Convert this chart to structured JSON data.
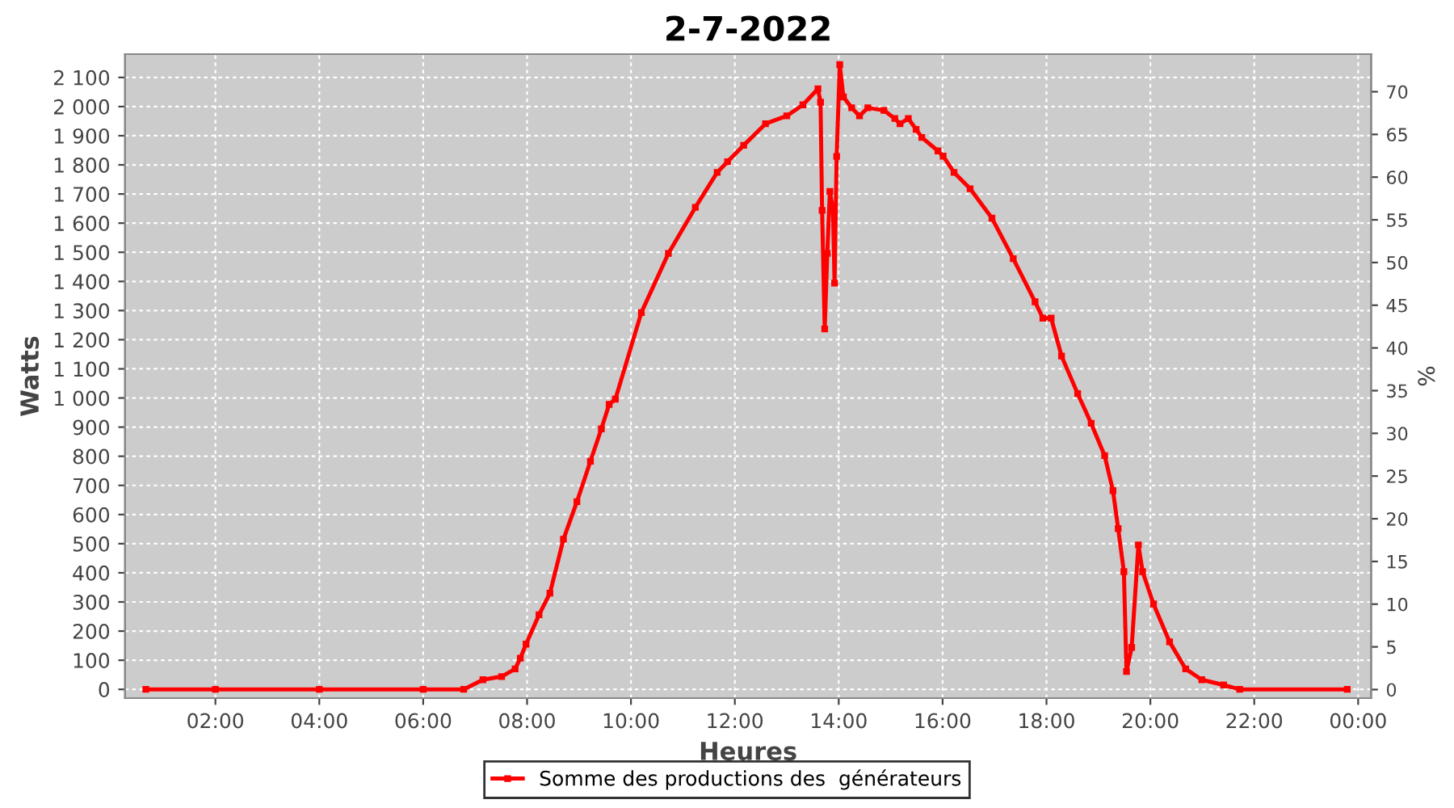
{
  "chart_data": {
    "type": "line",
    "title": "2-7-2022",
    "xlabel": "Heures",
    "ylabel": "Watts",
    "y2label": "%",
    "xlim": [
      0.26,
      24.25
    ],
    "xticks": [
      {
        "value": 2,
        "label": "02:00"
      },
      {
        "value": 4,
        "label": "04:00"
      },
      {
        "value": 6,
        "label": "06:00"
      },
      {
        "value": 8,
        "label": "08:00"
      },
      {
        "value": 10,
        "label": "10:00"
      },
      {
        "value": 12,
        "label": "12:00"
      },
      {
        "value": 14,
        "label": "14:00"
      },
      {
        "value": 16,
        "label": "16:00"
      },
      {
        "value": 18,
        "label": "18:00"
      },
      {
        "value": 20,
        "label": "20:00"
      },
      {
        "value": 22,
        "label": "22:00"
      },
      {
        "value": 24,
        "label": "00:00"
      }
    ],
    "ylim": [
      -30,
      2180
    ],
    "yticks": [
      0,
      100,
      200,
      300,
      400,
      500,
      600,
      700,
      800,
      900,
      {
        "value": 1000,
        "label": "1 000"
      },
      {
        "value": 1100,
        "label": "1 100"
      },
      {
        "value": 1200,
        "label": "1 200"
      },
      {
        "value": 1300,
        "label": "1 300"
      },
      {
        "value": 1400,
        "label": "1 400"
      },
      {
        "value": 1500,
        "label": "1 500"
      },
      {
        "value": 1600,
        "label": "1 600"
      },
      {
        "value": 1700,
        "label": "1 700"
      },
      {
        "value": 1800,
        "label": "1 800"
      },
      {
        "value": 1900,
        "label": "1 900"
      },
      {
        "value": 2000,
        "label": "2 000"
      },
      {
        "value": 2100,
        "label": "2 100"
      }
    ],
    "y2lim": [
      -1.0,
      74.4
    ],
    "y2ticks": [
      0,
      5,
      10,
      15,
      20,
      25,
      30,
      35,
      40,
      45,
      50,
      55,
      60,
      65,
      70
    ],
    "grid": true,
    "legend": "bottom",
    "marker": "square",
    "line_style": "solid",
    "series": [
      {
        "name": "Somme des productions des  générateurs",
        "color": "#ff0000",
        "x": [
          0.66,
          2.0,
          4.0,
          6.0,
          6.78,
          7.15,
          7.51,
          7.77,
          7.87,
          7.98,
          8.23,
          8.44,
          8.7,
          8.96,
          9.22,
          9.43,
          9.58,
          9.7,
          10.2,
          10.72,
          11.24,
          11.66,
          11.86,
          12.17,
          12.59,
          13.0,
          13.31,
          13.6,
          13.65,
          13.68,
          13.73,
          13.78,
          13.83,
          13.89,
          13.92,
          13.96,
          14.02,
          14.09,
          14.25,
          14.4,
          14.56,
          14.87,
          15.08,
          15.18,
          15.34,
          15.49,
          15.6,
          15.91,
          16.01,
          16.22,
          16.53,
          16.95,
          17.36,
          17.78,
          17.93,
          18.09,
          18.29,
          18.6,
          18.86,
          19.12,
          19.28,
          19.38,
          19.49,
          19.54,
          19.64,
          19.77,
          19.85,
          20.06,
          20.37,
          20.68,
          20.99,
          21.41,
          21.72,
          23.79
        ],
        "values": [
          0,
          0,
          0,
          0,
          0,
          33,
          44,
          70,
          107,
          155,
          256,
          330,
          515,
          644,
          783,
          894,
          978,
          996,
          1293,
          1496,
          1654,
          1774,
          1811,
          1867,
          1941,
          1968,
          2006,
          2061,
          2015,
          1644,
          1237,
          1496,
          1709,
          1644,
          1394,
          1829,
          2144,
          2033,
          1996,
          1968,
          1996,
          1987,
          1959,
          1941,
          1959,
          1922,
          1894,
          1848,
          1830,
          1774,
          1718,
          1617,
          1478,
          1330,
          1274,
          1274,
          1144,
          1015,
          913,
          802,
          682,
          552,
          404,
          61,
          144,
          496,
          404,
          293,
          163,
          70,
          33,
          15,
          0,
          0
        ]
      }
    ]
  }
}
